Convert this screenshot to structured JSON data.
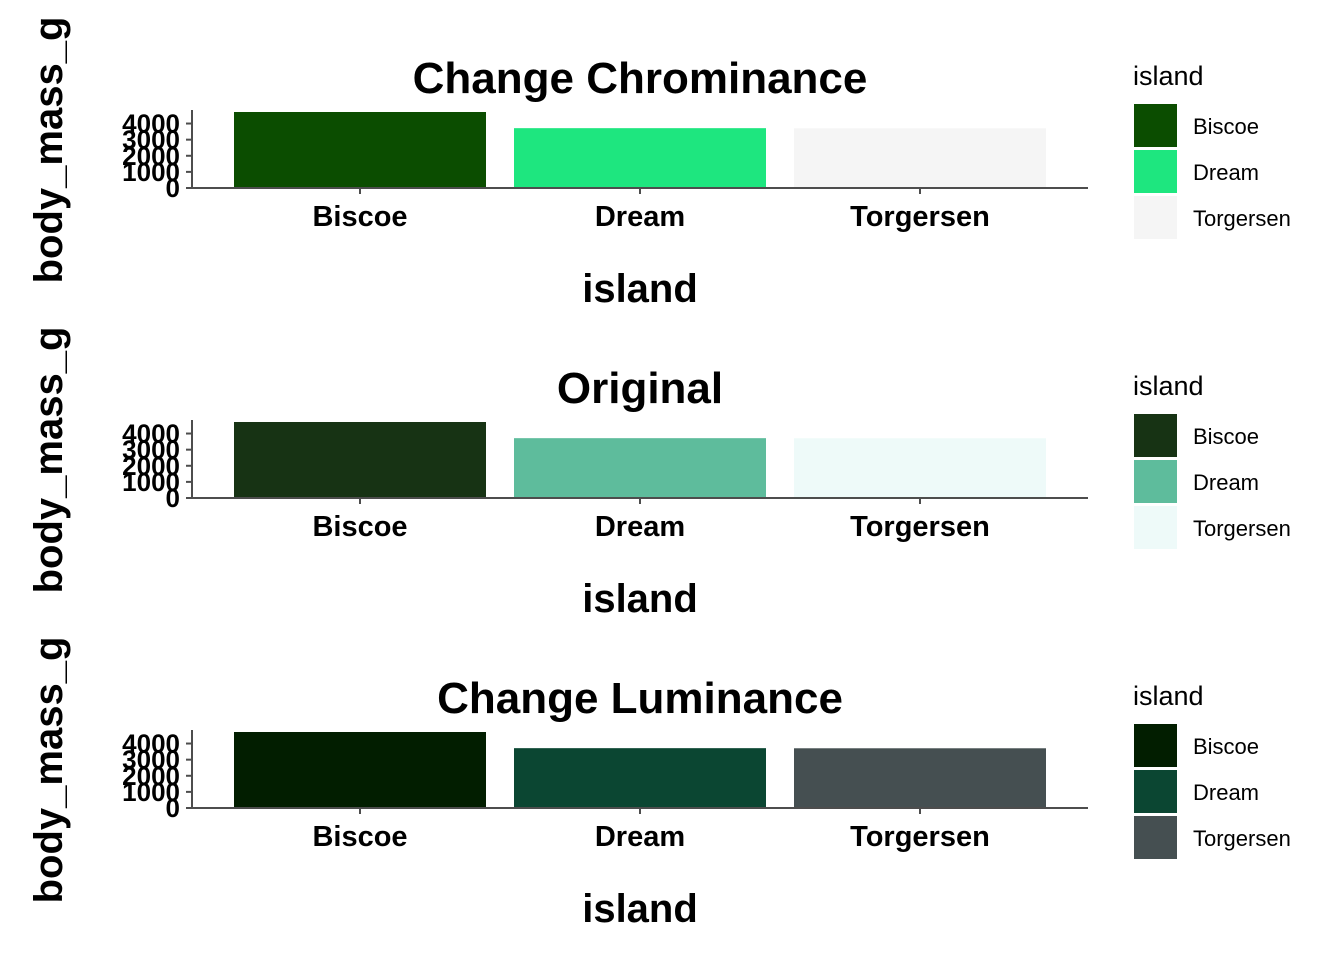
{
  "chart_data": [
    {
      "type": "bar",
      "title": "Change Chrominance",
      "xlabel": "island",
      "ylabel": "body_mass_g",
      "categories": [
        "Biscoe",
        "Dream",
        "Torgersen"
      ],
      "values": [
        4716,
        3713,
        3706
      ],
      "ylim": [
        0,
        4716
      ],
      "yticks": [
        0,
        1000,
        2000,
        3000,
        4000
      ],
      "colors": [
        "#0b4d00",
        "#1ee67f",
        "#f5f5f5"
      ],
      "grid": false,
      "legend": {
        "title": "island",
        "position": "right",
        "items": [
          "Biscoe",
          "Dream",
          "Torgersen"
        ]
      }
    },
    {
      "type": "bar",
      "title": "Original",
      "xlabel": "island",
      "ylabel": "body_mass_g",
      "categories": [
        "Biscoe",
        "Dream",
        "Torgersen"
      ],
      "values": [
        4716,
        3713,
        3706
      ],
      "ylim": [
        0,
        4716
      ],
      "yticks": [
        0,
        1000,
        2000,
        3000,
        4000
      ],
      "colors": [
        "#173314",
        "#5ebc9c",
        "#eefaf9"
      ],
      "grid": false,
      "legend": {
        "title": "island",
        "position": "right",
        "items": [
          "Biscoe",
          "Dream",
          "Torgersen"
        ]
      }
    },
    {
      "type": "bar",
      "title": "Change Luminance",
      "xlabel": "island",
      "ylabel": "body_mass_g",
      "categories": [
        "Biscoe",
        "Dream",
        "Torgersen"
      ],
      "values": [
        4716,
        3713,
        3706
      ],
      "ylim": [
        0,
        4716
      ],
      "yticks": [
        0,
        1000,
        2000,
        3000,
        4000
      ],
      "colors": [
        "#021e00",
        "#0b4632",
        "#454f51"
      ],
      "grid": false,
      "legend": {
        "title": "island",
        "position": "right",
        "items": [
          "Biscoe",
          "Dream",
          "Torgersen"
        ]
      }
    }
  ]
}
